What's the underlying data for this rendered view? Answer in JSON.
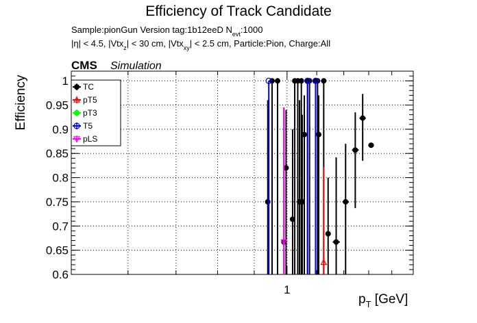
{
  "chart_data": {
    "type": "scatter",
    "title": "Efficiency of Track Candidate",
    "subtitle_line1": {
      "text": "Sample:pionGun   Version tag:1b12eeD  N",
      "sub": "evt",
      "after": ":1000"
    },
    "subtitle_line2": [
      {
        "t": "|η| < 4.5, |Vtx"
      },
      {
        "s": "z"
      },
      {
        "t": "| < 30 cm, |Vtx"
      },
      {
        "s": "xy"
      },
      {
        "t": "| < 2.5 cm, Particle:Pion, Charge:All"
      }
    ],
    "cms_label": "CMS",
    "simulation_label": "Simulation",
    "xlabel": {
      "main": "p",
      "sub": "T",
      "unit": " [GeV]"
    },
    "ylabel": "Efficiency",
    "xscale": "log",
    "xlim": [
      0.5,
      1.5
    ],
    "ylim": [
      0.6,
      1.02
    ],
    "y_ticks": [
      0.6,
      0.65,
      0.7,
      0.75,
      0.8,
      0.85,
      0.9,
      0.95,
      1
    ],
    "y_tick_labels": [
      "0.6",
      "0.65",
      "0.7",
      "0.75",
      "0.8",
      "0.85",
      "0.9",
      "0.95",
      "1"
    ],
    "x_ticks": [
      1
    ],
    "x_tick_labels": [
      "1"
    ],
    "grid": true,
    "legend_position": "top-left",
    "series": [
      {
        "name": "TC",
        "color": "#000000",
        "marker": "filled-circle",
        "points": [
          {
            "x": 0.94,
            "y": 0.75,
            "lo": 0.6,
            "hi": 0.96
          },
          {
            "x": 0.953,
            "y": 1.0,
            "lo": 0.6,
            "hi": 1.0
          },
          {
            "x": 0.97,
            "y": 1.0,
            "lo": 0.6,
            "hi": 1.0
          },
          {
            "x": 0.99,
            "y": 0.667,
            "lo": 0.6,
            "hi": 0.945
          },
          {
            "x": 0.997,
            "y": 0.82,
            "lo": 0.6,
            "hi": 0.94
          },
          {
            "x": 1.018,
            "y": 0.714,
            "lo": 0.6,
            "hi": 0.9
          },
          {
            "x": 1.025,
            "y": 1.0,
            "lo": 0.6,
            "hi": 1.0
          },
          {
            "x": 1.035,
            "y": 1.0,
            "lo": 0.6,
            "hi": 1.0
          },
          {
            "x": 1.041,
            "y": 0.75,
            "lo": 0.6,
            "hi": 0.96
          },
          {
            "x": 1.047,
            "y": 1.0,
            "lo": 0.6,
            "hi": 1.0
          },
          {
            "x": 1.05,
            "y": 0.75,
            "lo": 0.6,
            "hi": 0.93
          },
          {
            "x": 1.057,
            "y": 0.889,
            "lo": 0.6,
            "hi": 0.97
          },
          {
            "x": 1.068,
            "y": 1.0,
            "lo": 0.6,
            "hi": 1.0
          },
          {
            "x": 1.075,
            "y": 1.0,
            "lo": 0.6,
            "hi": 1.0
          },
          {
            "x": 1.096,
            "y": 1.0,
            "lo": 0.6,
            "hi": 1.0
          },
          {
            "x": 1.103,
            "y": 1.0,
            "lo": 0.6,
            "hi": 1.0
          },
          {
            "x": 1.107,
            "y": 0.889,
            "lo": 0.6,
            "hi": 0.97
          },
          {
            "x": 1.125,
            "y": 1.0,
            "lo": 0.6,
            "hi": 1.0
          },
          {
            "x": 1.141,
            "y": 0.684,
            "lo": 0.6,
            "hi": 0.8,
            "xlo": 1.131,
            "xhi": 1.151
          },
          {
            "x": 1.171,
            "y": 0.667,
            "lo": 0.6,
            "hi": 0.842,
            "xlo": 1.158,
            "xhi": 1.185
          },
          {
            "x": 1.207,
            "y": 0.75,
            "lo": 0.6,
            "hi": 0.87,
            "xlo": 1.195,
            "xhi": 1.22
          },
          {
            "x": 1.245,
            "y": 0.857,
            "lo": 0.737,
            "hi": 0.935,
            "xlo": 1.232,
            "xhi": 1.259
          },
          {
            "x": 1.275,
            "y": 0.923,
            "lo": 0.835,
            "hi": 0.973,
            "xlo": 1.262,
            "xhi": 1.288
          },
          {
            "x": 1.31,
            "y": 0.867,
            "lo": 0.6,
            "hi": 0.6,
            "xlo": 1.298,
            "xhi": 1.322
          }
        ]
      },
      {
        "name": "pT5",
        "color": "#ff0000",
        "marker": "open-triangle",
        "points": [
          {
            "x": 1.125,
            "y": 0.625,
            "lo": 0.6,
            "hi": 0.822
          }
        ]
      },
      {
        "name": "pT3",
        "color": "#00ff00",
        "marker": "filled-circle",
        "points": []
      },
      {
        "name": "T5",
        "color": "#0000ff",
        "marker": "open-circle",
        "points": [
          {
            "x": 0.943,
            "y": 1.0,
            "lo": 0.6,
            "hi": 1.0
          },
          {
            "x": 1.068,
            "y": 1.0,
            "lo": 0.6,
            "hi": 1.0
          },
          {
            "x": 1.096,
            "y": 1.0,
            "lo": 0.6,
            "hi": 1.0
          }
        ]
      },
      {
        "name": "pLS",
        "color": "#ff00ff",
        "marker": "open-triangle-down",
        "points": [
          {
            "x": 0.99,
            "y": 0.667,
            "lo": 0.6,
            "hi": 0.945
          }
        ]
      }
    ]
  }
}
